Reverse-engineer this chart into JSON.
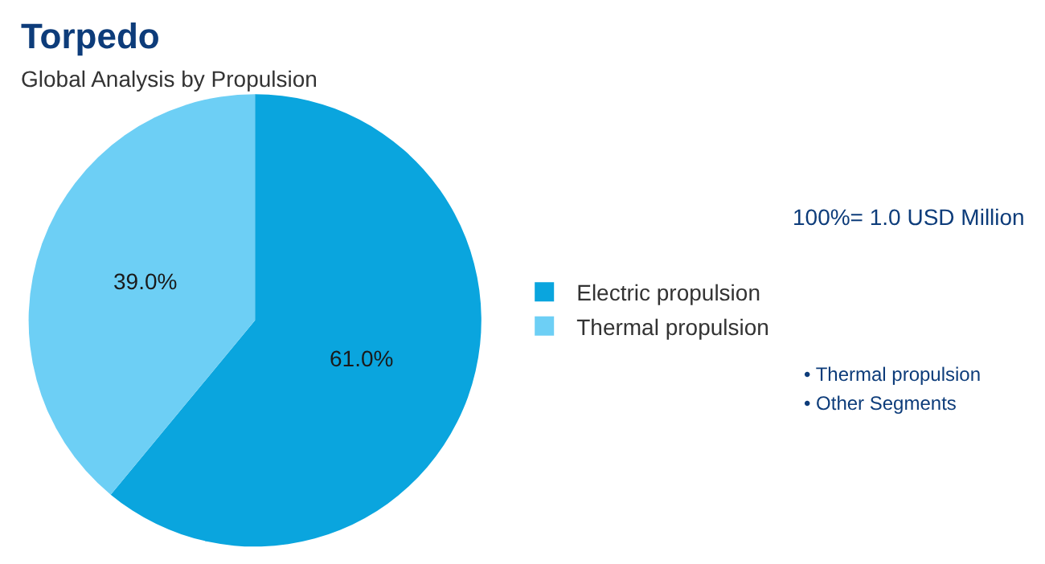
{
  "chart_data": {
    "type": "pie",
    "title": "Torpedo",
    "subtitle": "Global Analysis by Propulsion",
    "categories": [
      "Electric propulsion",
      "Thermal propulsion"
    ],
    "values": [
      61.0,
      39.0
    ],
    "colors": [
      "#0aa5de",
      "#6dcff5"
    ],
    "value_labels": [
      "61.0%",
      "39.0%"
    ],
    "legend": "right",
    "annotations": [
      "100%= 1.0 USD Million",
      "• Thermal propulsion",
      "• Other Segments"
    ]
  }
}
